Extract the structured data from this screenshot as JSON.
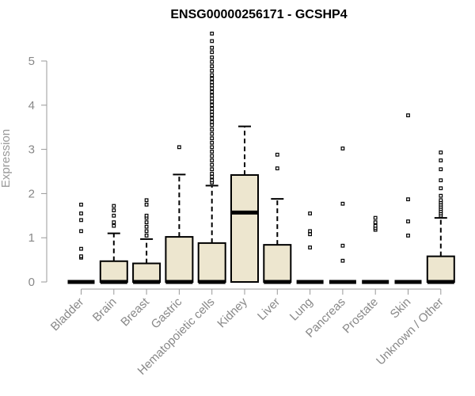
{
  "chart_data": {
    "type": "box",
    "title": "ENSG00000256171 - GCSHP4",
    "xlabel": "",
    "ylabel": "Expression",
    "ylim": [
      0,
      5.5
    ],
    "yticks": [
      0,
      1,
      2,
      3,
      4,
      5
    ],
    "categories": [
      "Bladder",
      "Brain",
      "Breast",
      "Gastric",
      "Hematopoietic cells",
      "Kidney",
      "Liver",
      "Lung",
      "Pancreas",
      "Prostate",
      "Skin",
      "Unknown / Other"
    ],
    "box_color": "#ede6cf",
    "median_color": "#000000",
    "boxes": [
      {
        "q1": 0,
        "median": 0,
        "q3": 0,
        "whisker_low": 0,
        "whisker_high": 0,
        "outliers": [
          0.55,
          0.58,
          0.75,
          1.15,
          1.4,
          1.55,
          1.75
        ]
      },
      {
        "q1": 0,
        "median": 0,
        "q3": 0.47,
        "whisker_low": 0,
        "whisker_high": 1.1,
        "outliers": [
          1.27,
          1.35,
          1.5,
          1.62,
          1.72
        ]
      },
      {
        "q1": 0,
        "median": 0,
        "q3": 0.42,
        "whisker_low": 0,
        "whisker_high": 0.97,
        "outliers": [
          1.05,
          1.15,
          1.25,
          1.35,
          1.45,
          1.5,
          1.75,
          1.85
        ]
      },
      {
        "q1": 0,
        "median": 0,
        "q3": 1.02,
        "whisker_low": 0,
        "whisker_high": 2.43,
        "outliers": [
          3.05
        ]
      },
      {
        "q1": 0,
        "median": 0,
        "q3": 0.88,
        "whisker_low": 0,
        "whisker_high": 2.18,
        "outliers": [
          2.25,
          2.3,
          2.38,
          2.45,
          2.55,
          2.65,
          2.75,
          2.85,
          2.95,
          3.05,
          3.15,
          3.25,
          3.35,
          3.45,
          3.55,
          3.62,
          3.7,
          3.78,
          3.85,
          3.92,
          4.0,
          4.08,
          4.15,
          4.22,
          4.3,
          4.38,
          4.45,
          4.52,
          4.6,
          4.68,
          4.78,
          4.88,
          4.98,
          5.08,
          5.2,
          5.3,
          5.45,
          5.62
        ]
      },
      {
        "q1": 0,
        "median": 1.57,
        "q3": 2.42,
        "whisker_low": 0,
        "whisker_high": 3.52,
        "outliers": []
      },
      {
        "q1": 0,
        "median": 0,
        "q3": 0.84,
        "whisker_low": 0,
        "whisker_high": 1.88,
        "outliers": [
          2.57,
          2.88
        ]
      },
      {
        "q1": 0,
        "median": 0,
        "q3": 0,
        "whisker_low": 0,
        "whisker_high": 0,
        "outliers": [
          0.78,
          1.08,
          1.15,
          1.55
        ]
      },
      {
        "q1": 0,
        "median": 0,
        "q3": 0,
        "whisker_low": 0,
        "whisker_high": 0,
        "outliers": [
          0.48,
          0.82,
          1.77,
          3.02
        ]
      },
      {
        "q1": 0,
        "median": 0,
        "q3": 0,
        "whisker_low": 0,
        "whisker_high": 0,
        "outliers": [
          1.18,
          1.22,
          1.27,
          1.35,
          1.45
        ]
      },
      {
        "q1": 0,
        "median": 0,
        "q3": 0,
        "whisker_low": 0,
        "whisker_high": 0,
        "outliers": [
          1.05,
          1.37,
          1.87,
          3.77
        ]
      },
      {
        "q1": 0,
        "median": 0,
        "q3": 0.58,
        "whisker_low": 0,
        "whisker_high": 1.45,
        "outliers": [
          1.5,
          1.55,
          1.6,
          1.65,
          1.7,
          1.75,
          1.8,
          1.85,
          1.95,
          2.12,
          2.3,
          2.55,
          2.75,
          2.93
        ]
      }
    ]
  }
}
